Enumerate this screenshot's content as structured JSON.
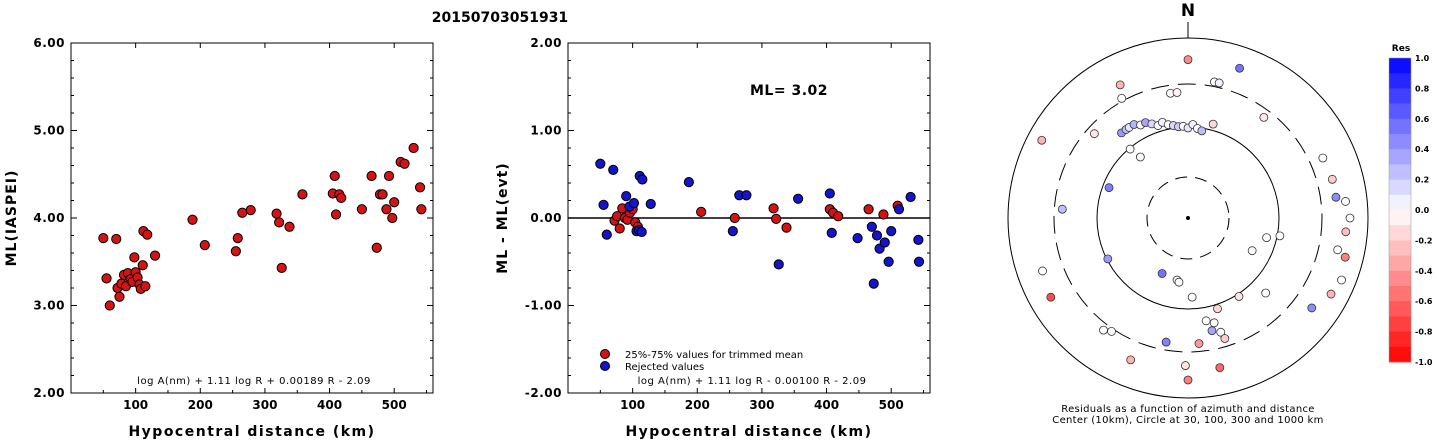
{
  "page_title": "20150703051931",
  "chart_data": [
    {
      "type": "scatter",
      "xlabel": "Hypocentral distance (km)",
      "ylabel": "ML(IASPEI)",
      "xlim": [
        0,
        560
      ],
      "ylim": [
        2.0,
        6.0
      ],
      "xticks": [
        "100",
        "200",
        "300",
        "400",
        "500"
      ],
      "yticks": [
        "2.00",
        "3.00",
        "4.00",
        "5.00",
        "6.00"
      ],
      "formula": "log A(nm) + 1.11 log R + 0.00189 R - 2.09",
      "color": "#d41414",
      "points": [
        [
          50,
          3.77
        ],
        [
          55,
          3.31
        ],
        [
          60,
          3.0
        ],
        [
          70,
          3.76
        ],
        [
          72,
          3.2
        ],
        [
          75,
          3.1
        ],
        [
          78,
          3.25
        ],
        [
          82,
          3.35
        ],
        [
          85,
          3.22
        ],
        [
          88,
          3.37
        ],
        [
          92,
          3.3
        ],
        [
          95,
          3.27
        ],
        [
          98,
          3.55
        ],
        [
          100,
          3.38
        ],
        [
          103,
          3.32
        ],
        [
          106,
          3.24
        ],
        [
          108,
          3.19
        ],
        [
          111,
          3.46
        ],
        [
          112,
          3.85
        ],
        [
          115,
          3.22
        ],
        [
          118,
          3.81
        ],
        [
          130,
          3.57
        ],
        [
          188,
          3.98
        ],
        [
          207,
          3.69
        ],
        [
          255,
          3.62
        ],
        [
          258,
          3.77
        ],
        [
          265,
          4.06
        ],
        [
          278,
          4.09
        ],
        [
          318,
          4.05
        ],
        [
          322,
          3.95
        ],
        [
          326,
          3.43
        ],
        [
          338,
          3.9
        ],
        [
          358,
          4.27
        ],
        [
          405,
          4.28
        ],
        [
          408,
          4.48
        ],
        [
          410,
          4.04
        ],
        [
          415,
          4.27
        ],
        [
          418,
          4.23
        ],
        [
          450,
          4.1
        ],
        [
          465,
          4.48
        ],
        [
          473,
          3.66
        ],
        [
          478,
          4.27
        ],
        [
          482,
          4.27
        ],
        [
          488,
          4.1
        ],
        [
          492,
          4.48
        ],
        [
          497,
          4.0
        ],
        [
          500,
          4.18
        ],
        [
          510,
          4.64
        ],
        [
          516,
          4.62
        ],
        [
          530,
          4.8
        ],
        [
          540,
          4.35
        ],
        [
          542,
          4.1
        ]
      ]
    },
    {
      "type": "scatter",
      "xlabel": "Hypocentral distance (km)",
      "ylabel": "ML - ML(evt)",
      "xlim": [
        0,
        560
      ],
      "ylim": [
        -2.0,
        2.0
      ],
      "xticks": [
        "100",
        "200",
        "300",
        "400",
        "500"
      ],
      "yticks": [
        "-2.00",
        "-1.00",
        "0.00",
        "1.00",
        "2.00"
      ],
      "annotation": "ML= 3.02",
      "formula": "log A(nm) + 1.11 log R - 0.00100 R - 2.09",
      "legend_position": "bottom-left",
      "series": [
        {
          "name": "25%-75% values for trimmed mean",
          "color": "#d41414",
          "points": [
            [
              72,
              -0.03
            ],
            [
              76,
              0.02
            ],
            [
              80,
              -0.12
            ],
            [
              84,
              0.11
            ],
            [
              88,
              0.0
            ],
            [
              92,
              -0.02
            ],
            [
              96,
              0.06
            ],
            [
              100,
              0.1
            ],
            [
              104,
              -0.05
            ],
            [
              108,
              -0.1
            ],
            [
              206,
              0.07
            ],
            [
              258,
              0.0
            ],
            [
              318,
              0.11
            ],
            [
              322,
              -0.01
            ],
            [
              338,
              -0.11
            ],
            [
              405,
              0.1
            ],
            [
              410,
              0.06
            ],
            [
              418,
              0.02
            ],
            [
              465,
              0.1
            ],
            [
              488,
              0.04
            ],
            [
              510,
              0.14
            ]
          ]
        },
        {
          "name": "Rejected values",
          "color": "#1414cc",
          "points": [
            [
              50,
              0.62
            ],
            [
              55,
              0.15
            ],
            [
              60,
              -0.19
            ],
            [
              70,
              0.55
            ],
            [
              90,
              0.25
            ],
            [
              95,
              0.13
            ],
            [
              102,
              0.17
            ],
            [
              106,
              -0.15
            ],
            [
              110,
              -0.14
            ],
            [
              111,
              0.48
            ],
            [
              114,
              -0.16
            ],
            [
              115,
              0.44
            ],
            [
              128,
              0.16
            ],
            [
              187,
              0.41
            ],
            [
              255,
              -0.15
            ],
            [
              265,
              0.26
            ],
            [
              276,
              0.26
            ],
            [
              326,
              -0.53
            ],
            [
              356,
              0.22
            ],
            [
              405,
              0.28
            ],
            [
              408,
              -0.17
            ],
            [
              448,
              -0.23
            ],
            [
              470,
              -0.1
            ],
            [
              473,
              -0.75
            ],
            [
              478,
              -0.2
            ],
            [
              482,
              -0.35
            ],
            [
              490,
              -0.28
            ],
            [
              496,
              -0.5
            ],
            [
              500,
              -0.15
            ],
            [
              512,
              0.1
            ],
            [
              530,
              0.24
            ],
            [
              542,
              -0.25
            ],
            [
              543,
              -0.5
            ]
          ]
        }
      ]
    },
    {
      "type": "polar-scatter",
      "north_label": "N",
      "caption_line1": "Residuals as a function of azimuth and distance",
      "caption_line2": "Center (10km), Circle at 30, 100, 300 and 1000 km",
      "rings": [
        "30 km (dashed)",
        "100 km (solid)",
        "300 km (dashed)",
        "1000 km (solid)"
      ],
      "colorbar": {
        "title": "Res",
        "ticks": [
          "1.0",
          "0.8",
          "0.6",
          "0.4",
          "0.2",
          "0.0",
          "-0.2",
          "-0.4",
          "-0.6",
          "-0.8",
          "-1.0"
        ]
      },
      "points": [
        {
          "az": 0,
          "r": 0.88,
          "res": -0.45
        },
        {
          "az": 352,
          "r": 0.7,
          "res": 0.0
        },
        {
          "az": 355,
          "r": 0.7,
          "res": -0.05
        },
        {
          "az": 19,
          "r": 0.88,
          "res": 0.55
        },
        {
          "az": 11,
          "r": 0.77,
          "res": 0.0
        },
        {
          "az": 13,
          "r": 0.77,
          "res": 0.05
        },
        {
          "az": 333,
          "r": 0.83,
          "res": -0.3
        },
        {
          "az": 331,
          "r": 0.76,
          "res": 0.0
        },
        {
          "az": 322,
          "r": 0.6,
          "res": 0.4
        },
        {
          "az": 325,
          "r": 0.6,
          "res": 0.25
        },
        {
          "az": 327,
          "r": 0.6,
          "res": 0.1
        },
        {
          "az": 330,
          "r": 0.6,
          "res": 0.3
        },
        {
          "az": 333,
          "r": 0.58,
          "res": 0.0
        },
        {
          "az": 336,
          "r": 0.58,
          "res": 0.35
        },
        {
          "az": 339,
          "r": 0.56,
          "res": 0.15
        },
        {
          "az": 342,
          "r": 0.54,
          "res": 0.0
        },
        {
          "az": 345,
          "r": 0.55,
          "res": 0.05
        },
        {
          "az": 348,
          "r": 0.53,
          "res": 0.0
        },
        {
          "az": 351,
          "r": 0.52,
          "res": 0.15
        },
        {
          "az": 354,
          "r": 0.51,
          "res": 0.2
        },
        {
          "az": 357,
          "r": 0.51,
          "res": 0.0
        },
        {
          "az": 0,
          "r": 0.5,
          "res": 0.1
        },
        {
          "az": 3,
          "r": 0.52,
          "res": 0.05
        },
        {
          "az": 6,
          "r": 0.5,
          "res": 0.0
        },
        {
          "az": 9,
          "r": 0.49,
          "res": 0.25
        },
        {
          "az": 15,
          "r": 0.54,
          "res": -0.15
        },
        {
          "az": 298,
          "r": 0.92,
          "res": -0.3
        },
        {
          "az": 322,
          "r": 0.43,
          "res": 0.0
        },
        {
          "az": 320,
          "r": 0.5,
          "res": 0.0
        },
        {
          "az": 37,
          "r": 0.7,
          "res": -0.1
        },
        {
          "az": 66,
          "r": 0.82,
          "res": 0.0
        },
        {
          "az": 75,
          "r": 0.83,
          "res": -0.2
        },
        {
          "az": 82,
          "r": 0.83,
          "res": 0.45
        },
        {
          "az": 84,
          "r": 0.88,
          "res": 0.0
        },
        {
          "az": 90,
          "r": 0.9,
          "res": 0.0
        },
        {
          "az": 95,
          "r": 0.88,
          "res": -0.25
        },
        {
          "az": 102,
          "r": 0.85,
          "res": 0.0
        },
        {
          "az": 104,
          "r": 0.9,
          "res": -0.5
        },
        {
          "az": 112,
          "r": 0.92,
          "res": 0.0
        },
        {
          "az": 118,
          "r": 0.9,
          "res": -0.3
        },
        {
          "az": 126,
          "r": 0.85,
          "res": 0.45
        },
        {
          "az": 101,
          "r": 0.52,
          "res": 0.0
        },
        {
          "az": 104,
          "r": 0.45,
          "res": 0.0
        },
        {
          "az": 134,
          "r": 0.6,
          "res": 0.0
        },
        {
          "az": 162,
          "r": 0.53,
          "res": -0.15
        },
        {
          "az": 166,
          "r": 0.6,
          "res": 0.0
        },
        {
          "az": 170,
          "r": 0.58,
          "res": 0.0
        },
        {
          "az": 168,
          "r": 0.64,
          "res": 0.35
        },
        {
          "az": 164,
          "r": 0.66,
          "res": 0.0
        },
        {
          "az": 163,
          "r": 0.7,
          "res": -0.2
        },
        {
          "az": 175,
          "r": 0.7,
          "res": -0.4
        },
        {
          "az": 181,
          "r": 0.82,
          "res": -0.1
        },
        {
          "az": 180,
          "r": 0.9,
          "res": -0.5
        },
        {
          "az": 168,
          "r": 0.85,
          "res": -0.6
        },
        {
          "az": 190,
          "r": 0.7,
          "res": 0.5
        },
        {
          "az": 202,
          "r": 0.85,
          "res": -0.3
        },
        {
          "az": 214,
          "r": 0.76,
          "res": 0.0
        },
        {
          "az": 217,
          "r": 0.78,
          "res": 0.0
        },
        {
          "az": 240,
          "r": 0.88,
          "res": -0.7
        },
        {
          "az": 250,
          "r": 0.86,
          "res": 0.0
        },
        {
          "az": 274,
          "r": 0.7,
          "res": 0.25
        },
        {
          "az": 291,
          "r": 0.47,
          "res": 0.5
        },
        {
          "az": 312,
          "r": 0.7,
          "res": -0.1
        },
        {
          "az": 205,
          "r": 0.34,
          "res": 0.55
        },
        {
          "az": 243,
          "r": 0.5,
          "res": 0.4
        },
        {
          "az": 190,
          "r": 0.35,
          "res": 0.0
        },
        {
          "az": 188,
          "r": 0.36,
          "res": 0.0
        },
        {
          "az": 177,
          "r": 0.44,
          "res": 0.0
        },
        {
          "az": 147,
          "r": 0.52,
          "res": -0.1
        },
        {
          "az": 117,
          "r": 0.4,
          "res": 0.0
        }
      ]
    }
  ]
}
